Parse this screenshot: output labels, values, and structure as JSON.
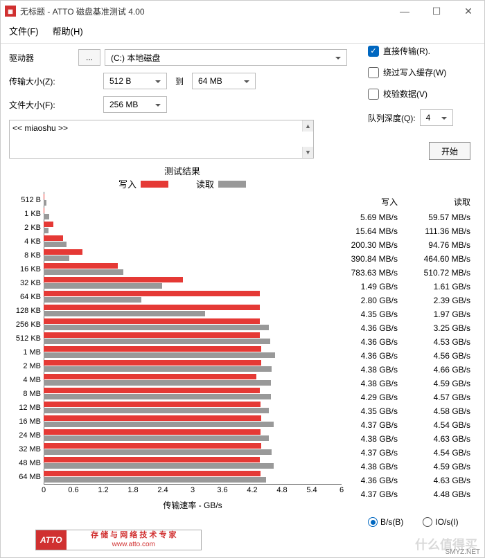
{
  "window": {
    "title": "无标题 - ATTO 磁盘基准测试 4.00",
    "icon_text": "ATTO"
  },
  "menu": {
    "file": "文件(F)",
    "help": "帮助(H)"
  },
  "labels": {
    "drive": "驱动器",
    "browse": "...",
    "transfer_size": "传输大小(Z):",
    "to": "到",
    "file_size": "文件大小(F):",
    "queue_depth": "队列深度(Q):",
    "start": "开始",
    "results_title": "测试结果",
    "write": "写入",
    "read": "读取",
    "x_axis": "传输速率 - GB/s"
  },
  "options": {
    "direct": {
      "label": "直接传输(R).",
      "checked": true
    },
    "bypass": {
      "label": "绕过写入缓存(W)",
      "checked": false
    },
    "verify": {
      "label": "校验数据(V)",
      "checked": false
    }
  },
  "fields": {
    "drive": "(C:) 本地磁盘",
    "size_from": "512 B",
    "size_to": "64 MB",
    "file_size": "256 MB",
    "queue_depth": "4",
    "description": "<< miaoshu >>"
  },
  "radio": {
    "bps": "B/s(B)",
    "iops": "IO/s(I)",
    "selected": "bps"
  },
  "colors": {
    "write": "#e53935",
    "read": "#999999",
    "accent": "#0067c0"
  },
  "chart": {
    "type": "bar",
    "xmax_gbps": 6.0,
    "xticks": [
      0,
      0.6,
      1.2,
      1.8,
      2.4,
      3,
      3.6,
      4.2,
      4.8,
      5.4,
      6
    ]
  },
  "rows": [
    {
      "label": "512 B",
      "w_gbps": 0.00569,
      "r_gbps": 0.05957,
      "w_txt": "5.69 MB/s",
      "r_txt": "59.57 MB/s"
    },
    {
      "label": "1 KB",
      "w_gbps": 0.01564,
      "r_gbps": 0.11136,
      "w_txt": "15.64 MB/s",
      "r_txt": "111.36 MB/s"
    },
    {
      "label": "2 KB",
      "w_gbps": 0.2003,
      "r_gbps": 0.09476,
      "w_txt": "200.30 MB/s",
      "r_txt": "94.76 MB/s"
    },
    {
      "label": "4 KB",
      "w_gbps": 0.39084,
      "r_gbps": 0.4646,
      "w_txt": "390.84 MB/s",
      "r_txt": "464.60 MB/s"
    },
    {
      "label": "8 KB",
      "w_gbps": 0.78363,
      "r_gbps": 0.51072,
      "w_txt": "783.63 MB/s",
      "r_txt": "510.72 MB/s"
    },
    {
      "label": "16 KB",
      "w_gbps": 1.49,
      "r_gbps": 1.61,
      "w_txt": "1.49 GB/s",
      "r_txt": "1.61 GB/s"
    },
    {
      "label": "32 KB",
      "w_gbps": 2.8,
      "r_gbps": 2.39,
      "w_txt": "2.80 GB/s",
      "r_txt": "2.39 GB/s"
    },
    {
      "label": "64 KB",
      "w_gbps": 4.35,
      "r_gbps": 1.97,
      "w_txt": "4.35 GB/s",
      "r_txt": "1.97 GB/s"
    },
    {
      "label": "128 KB",
      "w_gbps": 4.36,
      "r_gbps": 3.25,
      "w_txt": "4.36 GB/s",
      "r_txt": "3.25 GB/s"
    },
    {
      "label": "256 KB",
      "w_gbps": 4.36,
      "r_gbps": 4.53,
      "w_txt": "4.36 GB/s",
      "r_txt": "4.53 GB/s"
    },
    {
      "label": "512 KB",
      "w_gbps": 4.36,
      "r_gbps": 4.56,
      "w_txt": "4.36 GB/s",
      "r_txt": "4.56 GB/s"
    },
    {
      "label": "1 MB",
      "w_gbps": 4.38,
      "r_gbps": 4.66,
      "w_txt": "4.38 GB/s",
      "r_txt": "4.66 GB/s"
    },
    {
      "label": "2 MB",
      "w_gbps": 4.38,
      "r_gbps": 4.59,
      "w_txt": "4.38 GB/s",
      "r_txt": "4.59 GB/s"
    },
    {
      "label": "4 MB",
      "w_gbps": 4.29,
      "r_gbps": 4.57,
      "w_txt": "4.29 GB/s",
      "r_txt": "4.57 GB/s"
    },
    {
      "label": "8 MB",
      "w_gbps": 4.35,
      "r_gbps": 4.58,
      "w_txt": "4.35 GB/s",
      "r_txt": "4.58 GB/s"
    },
    {
      "label": "12 MB",
      "w_gbps": 4.37,
      "r_gbps": 4.54,
      "w_txt": "4.37 GB/s",
      "r_txt": "4.54 GB/s"
    },
    {
      "label": "16 MB",
      "w_gbps": 4.38,
      "r_gbps": 4.63,
      "w_txt": "4.38 GB/s",
      "r_txt": "4.63 GB/s"
    },
    {
      "label": "24 MB",
      "w_gbps": 4.37,
      "r_gbps": 4.54,
      "w_txt": "4.37 GB/s",
      "r_txt": "4.54 GB/s"
    },
    {
      "label": "32 MB",
      "w_gbps": 4.38,
      "r_gbps": 4.59,
      "w_txt": "4.38 GB/s",
      "r_txt": "4.59 GB/s"
    },
    {
      "label": "48 MB",
      "w_gbps": 4.36,
      "r_gbps": 4.63,
      "w_txt": "4.36 GB/s",
      "r_txt": "4.63 GB/s"
    },
    {
      "label": "64 MB",
      "w_gbps": 4.37,
      "r_gbps": 4.48,
      "w_txt": "4.37 GB/s",
      "r_txt": "4.48 GB/s"
    }
  ],
  "footer": {
    "logo": "ATTO",
    "tagline1": "存 储 与 网 络 技 术 专 家",
    "tagline2": "www.atto.com",
    "watermark": "什么值得买",
    "smyz": "SMYZ.NET"
  }
}
